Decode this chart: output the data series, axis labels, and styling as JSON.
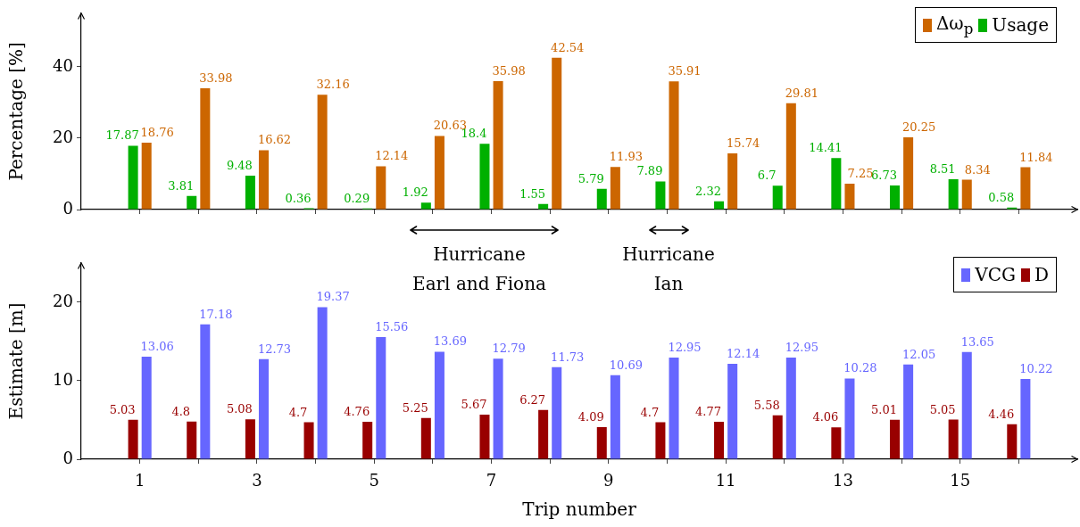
{
  "chart_data": [
    {
      "type": "bar",
      "ylabel": "Percentage [%]",
      "x": [
        1,
        2,
        3,
        4,
        5,
        6,
        7,
        8,
        9,
        10,
        11,
        12,
        13,
        14,
        15,
        16
      ],
      "xlim": [
        0,
        17
      ],
      "xticks": [
        1,
        {
          "value": 2,
          "label": null
        },
        3,
        {
          "value": 4,
          "label": null
        },
        5,
        {
          "value": 6,
          "label": null
        },
        7,
        {
          "value": 8,
          "label": null
        },
        9,
        {
          "value": 10,
          "label": null
        },
        11,
        {
          "value": 12,
          "label": null
        },
        13,
        {
          "value": 14,
          "label": null
        },
        15,
        {
          "value": 16,
          "label": null
        }
      ],
      "ylim": [
        0,
        55
      ],
      "yticks": [
        0,
        20,
        40
      ],
      "tick_labels": "y",
      "series": [
        {
          "name": "Usage",
          "color": "#00b000",
          "values": [
            17.87,
            3.81,
            9.48,
            0.36,
            0.29,
            1.92,
            18.4,
            1.55,
            5.79,
            7.89,
            2.32,
            6.7,
            14.41,
            6.73,
            8.51,
            0.58
          ]
        },
        {
          "name": "Δω$_{p}$",
          "color": "#cc6600",
          "values": [
            18.76,
            33.98,
            16.62,
            32.16,
            12.14,
            20.63,
            35.98,
            42.54,
            11.93,
            35.91,
            15.74,
            29.81,
            7.25,
            20.25,
            8.34,
            11.84
          ]
        }
      ],
      "data_labels": true,
      "legend": "top right",
      "annotations": [
        "Hurricane\nEarl and Fiona",
        "Hurricane\nIan"
      ]
    },
    {
      "type": "bar",
      "xlabel": "Trip number",
      "ylabel": "Estimate [m]",
      "x": [
        1,
        2,
        3,
        4,
        5,
        6,
        7,
        8,
        9,
        10,
        11,
        12,
        13,
        14,
        15,
        16
      ],
      "xlim": [
        0,
        17
      ],
      "xticks": [
        1,
        {
          "value": 2,
          "label": null
        },
        3,
        {
          "value": 4,
          "label": null
        },
        5,
        {
          "value": 6,
          "label": null
        },
        7,
        {
          "value": 8,
          "label": null
        },
        9,
        {
          "value": 10,
          "label": null
        },
        11,
        {
          "value": 12,
          "label": null
        },
        13,
        {
          "value": 14,
          "label": null
        },
        15,
        {
          "value": 16,
          "label": null
        }
      ],
      "ylim": [
        0,
        25
      ],
      "yticks": [
        0,
        10,
        20
      ],
      "series": [
        {
          "name": "D",
          "color": "#990000",
          "values": [
            5.03,
            4.8,
            5.08,
            4.7,
            4.76,
            5.25,
            5.67,
            6.27,
            4.09,
            4.7,
            4.77,
            5.58,
            4.06,
            5.01,
            5.05,
            4.46
          ]
        },
        {
          "name": "VCG",
          "color": "#6666ff",
          "values": [
            13.06,
            17.18,
            12.73,
            19.37,
            15.56,
            13.69,
            12.79,
            11.73,
            10.69,
            12.95,
            12.14,
            12.95,
            10.28,
            12.05,
            13.65,
            10.22
          ]
        }
      ],
      "data_labels": true,
      "legend": "top right"
    }
  ]
}
